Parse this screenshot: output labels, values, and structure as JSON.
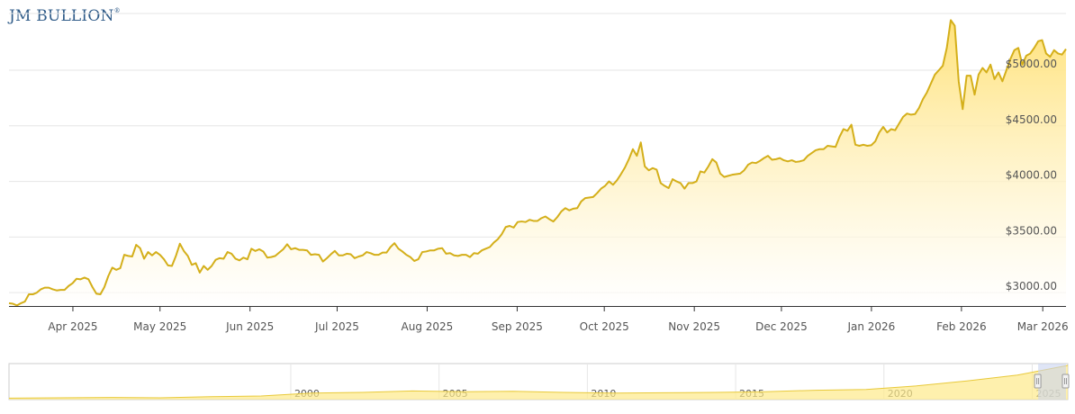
{
  "brand": {
    "logo_text": "JM BULLION",
    "logo_mark": "®"
  },
  "chart_data": {
    "type": "area",
    "title": "",
    "xlabel": "",
    "ylabel": "",
    "series": [
      {
        "values": [
          2905,
          2900,
          2885,
          2905,
          2920,
          2985,
          2985,
          3000,
          3030,
          3045,
          3045,
          3030,
          3020,
          3025,
          3025,
          3060,
          3085,
          3125,
          3120,
          3135,
          3120,
          3050,
          2990,
          2985,
          3050,
          3150,
          3225,
          3205,
          3220,
          3340,
          3330,
          3325,
          3430,
          3400,
          3305,
          3365,
          3335,
          3365,
          3340,
          3300,
          3245,
          3240,
          3330,
          3440,
          3375,
          3330,
          3250,
          3265,
          3180,
          3240,
          3205,
          3240,
          3295,
          3310,
          3305,
          3365,
          3350,
          3305,
          3290,
          3315,
          3300,
          3395,
          3375,
          3390,
          3370,
          3315,
          3320,
          3330,
          3360,
          3390,
          3435,
          3390,
          3400,
          3385,
          3385,
          3380,
          3340,
          3345,
          3340,
          3280,
          3310,
          3345,
          3375,
          3335,
          3335,
          3350,
          3345,
          3310,
          3325,
          3335,
          3365,
          3355,
          3340,
          3340,
          3360,
          3360,
          3410,
          3445,
          3395,
          3370,
          3340,
          3320,
          3285,
          3300,
          3365,
          3370,
          3380,
          3380,
          3395,
          3400,
          3350,
          3355,
          3335,
          3330,
          3340,
          3340,
          3320,
          3355,
          3350,
          3380,
          3395,
          3410,
          3450,
          3480,
          3525,
          3590,
          3600,
          3585,
          3635,
          3640,
          3635,
          3655,
          3645,
          3645,
          3670,
          3685,
          3660,
          3640,
          3680,
          3730,
          3760,
          3740,
          3755,
          3760,
          3820,
          3850,
          3855,
          3860,
          3895,
          3935,
          3960,
          4000,
          3970,
          4010,
          4065,
          4125,
          4200,
          4290,
          4230,
          4350,
          4135,
          4100,
          4120,
          4105,
          3985,
          3960,
          3940,
          4020,
          4000,
          3985,
          3935,
          3985,
          3985,
          4000,
          4090,
          4080,
          4135,
          4200,
          4170,
          4070,
          4040,
          4050,
          4060,
          4065,
          4070,
          4100,
          4150,
          4170,
          4165,
          4185,
          4210,
          4230,
          4195,
          4200,
          4210,
          4190,
          4180,
          4190,
          4175,
          4180,
          4190,
          4230,
          4255,
          4280,
          4290,
          4290,
          4320,
          4315,
          4310,
          4400,
          4470,
          4455,
          4510,
          4330,
          4320,
          4330,
          4320,
          4325,
          4360,
          4440,
          4490,
          4440,
          4470,
          4460,
          4520,
          4580,
          4610,
          4600,
          4605,
          4660,
          4740,
          4800,
          4880,
          4960,
          5000,
          5040,
          5200,
          5450,
          5400,
          4900,
          4650,
          4950,
          4950,
          4780,
          4960,
          5020,
          4980,
          5050,
          4920,
          4980,
          4900,
          5000,
          5100,
          5180,
          5200,
          5050,
          5130,
          5150,
          5200,
          5260,
          5270,
          5150,
          5120,
          5180,
          5150,
          5140,
          5190
        ]
      }
    ],
    "x_tick_labels": [
      "Apr 2025",
      "May 2025",
      "Jun 2025",
      "Jul 2025",
      "Aug 2025",
      "Sep 2025",
      "Oct 2025",
      "Nov 2025",
      "Dec 2025",
      "Jan 2026",
      "Feb 2026",
      "Mar 2026"
    ],
    "x_tick_months": [
      "2025-04",
      "2025-05",
      "2025-06",
      "2025-07",
      "2025-08",
      "2025-09",
      "2025-10",
      "2025-11",
      "2025-12",
      "2026-01",
      "2026-02",
      "2026-03"
    ],
    "x_range": [
      "2025-03-10",
      "2026-03-09"
    ],
    "y_tick_labels": [
      "$3000.00",
      "$3500.00",
      "$4000.00",
      "$4500.00",
      "$5000.00"
    ],
    "y_ticks": [
      3000,
      3500,
      4000,
      4500,
      5000
    ],
    "ylim": [
      2880,
      5550
    ],
    "grid": true,
    "colors": {
      "line": "#d4af1a",
      "fill_top": "#ffe27a",
      "fill_bottom": "#ffffff",
      "grid": "#e6e6e6",
      "axis": "#333333"
    }
  },
  "navigator": {
    "tick_labels": [
      "2000",
      "2005",
      "2010",
      "2015",
      "2020",
      "2025"
    ],
    "values": [
      0.04,
      0.05,
      0.06,
      0.05,
      0.08,
      0.1,
      0.18,
      0.2,
      0.24,
      0.22,
      0.23,
      0.2,
      0.18,
      0.19,
      0.2,
      0.22,
      0.26,
      0.28,
      0.38,
      0.52,
      0.68,
      0.95
    ],
    "selection_start": 0.972,
    "colors": {
      "fill": "#fde98a",
      "line": "#e8c93a",
      "mask": "#c9d3f0",
      "border": "#cccccc"
    }
  }
}
